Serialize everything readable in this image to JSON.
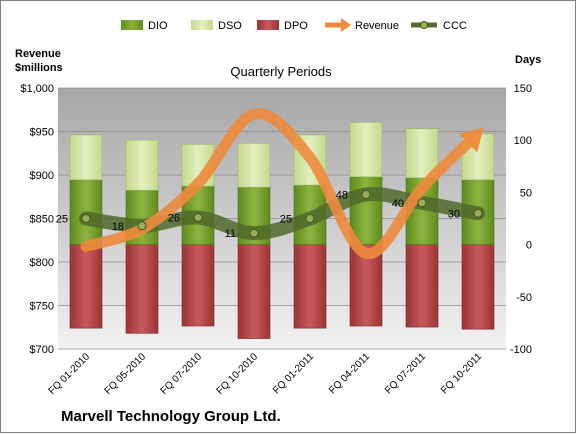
{
  "chart_data": {
    "type": "bar",
    "title": "Quarterly Periods",
    "company": "Marvell Technology Group Ltd.",
    "categories": [
      "FQ 01-2010",
      "FQ 05-2010",
      "FQ 07-2010",
      "FQ 10-2010",
      "FQ 01-2011",
      "FQ 04-2011",
      "FQ 07-2011",
      "FQ 10-2011"
    ],
    "left_axis": {
      "label_line1": "Revenue",
      "label_line2": "$millions",
      "range": [
        700,
        1000
      ],
      "ticks": [
        "$700",
        "$750",
        "$800",
        "$850",
        "$900",
        "$950",
        "$1,000"
      ]
    },
    "right_axis": {
      "label": "Days",
      "range": [
        -100,
        150
      ],
      "ticks": [
        "-100",
        "-50",
        "0",
        "50",
        "100",
        "150"
      ]
    },
    "legend": {
      "position": "top",
      "items": [
        "DIO",
        "DSO",
        "DPO",
        "Revenue",
        "CCC"
      ]
    },
    "grid": true,
    "series": [
      {
        "name": "DIO",
        "axis": "right",
        "stacked": "positive",
        "color": "#78a22f",
        "values": [
          62,
          52,
          56,
          55,
          57,
          65,
          64,
          62
        ]
      },
      {
        "name": "DSO",
        "axis": "right",
        "stacked": "positive",
        "color": "#d4e6a4",
        "values": [
          43,
          48,
          40,
          42,
          48,
          52,
          47,
          44
        ]
      },
      {
        "name": "DPO",
        "axis": "right",
        "stacked": "negative",
        "color": "#b5474a",
        "values": [
          80,
          85,
          78,
          90,
          80,
          78,
          79,
          81
        ]
      },
      {
        "name": "Revenue",
        "axis": "left",
        "type": "line",
        "color": "#ee8a3c",
        "values": [
          818,
          838,
          890,
          970,
          920,
          810,
          885,
          948
        ]
      },
      {
        "name": "CCC",
        "axis": "right",
        "type": "line",
        "color": "#556b2f",
        "values": [
          25,
          18,
          26,
          11,
          25,
          48,
          40,
          30
        ],
        "data_labels": [
          "25",
          "18",
          "26",
          "11",
          "25",
          "48",
          "40",
          "30"
        ]
      }
    ]
  }
}
